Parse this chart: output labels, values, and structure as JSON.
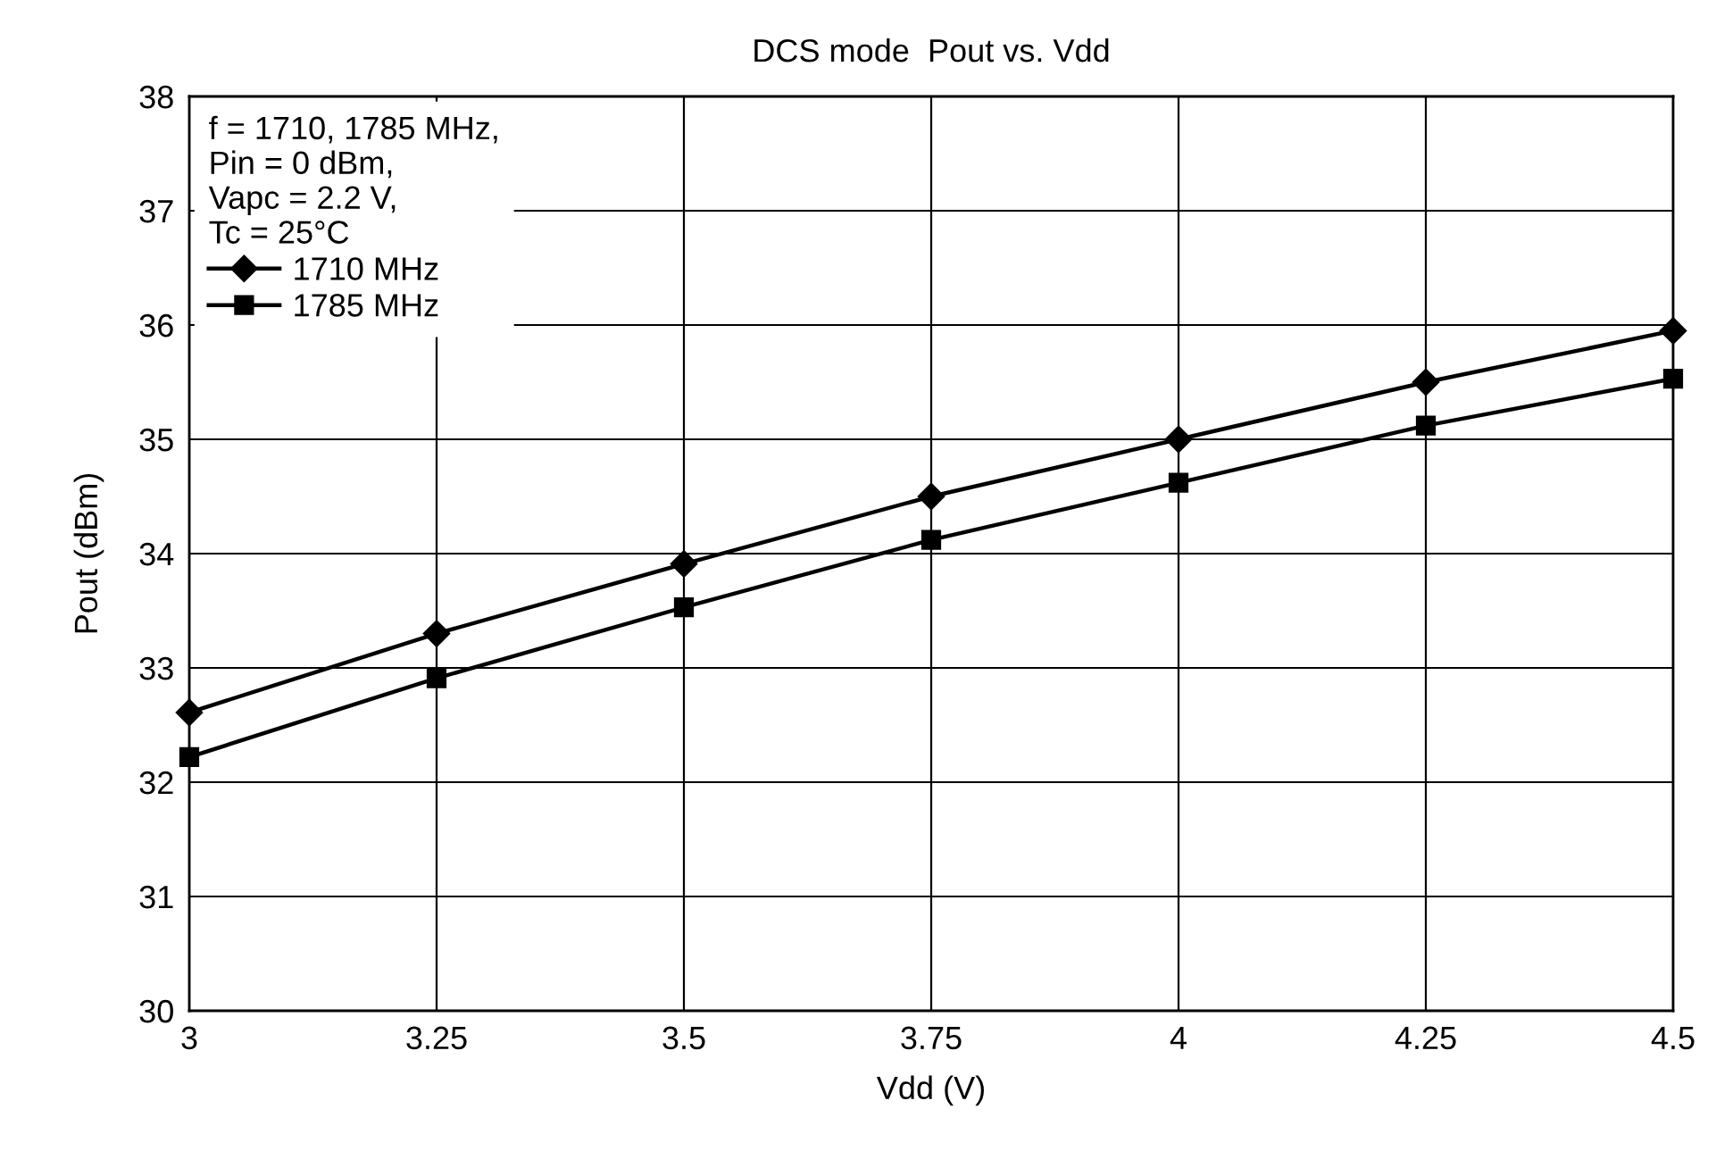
{
  "chart_data": {
    "type": "line",
    "title": "DCS mode  Pout vs. Vdd",
    "xlabel": "Vdd (V)",
    "ylabel": "Pout (dBm)",
    "legend_title": "f = 1710, 1785 MHz,\nPin = 0 dBm,\nVapc = 2.2 V,\nTc = 25°C",
    "x": [
      3,
      3.25,
      3.5,
      3.75,
      4,
      4.25,
      4.5
    ],
    "series": [
      {
        "name": "1710 MHz",
        "color": "#000000",
        "marker": "diamond",
        "values": [
          32.61,
          33.3,
          33.91,
          34.5,
          35.0,
          35.5,
          35.95
        ]
      },
      {
        "name": "1785 MHz",
        "color": "#000000",
        "marker": "square",
        "values": [
          32.22,
          32.91,
          33.53,
          34.12,
          34.62,
          35.12,
          35.53
        ]
      }
    ],
    "xlim": [
      3,
      4.5
    ],
    "xticks": [
      3,
      3.25,
      3.5,
      3.75,
      4,
      4.25,
      4.5
    ],
    "ylim": [
      30,
      38
    ],
    "yticks": [
      30,
      31,
      32,
      33,
      34,
      35,
      36,
      37,
      38
    ],
    "grid": true,
    "legend": "top left",
    "line_style": "solid"
  }
}
